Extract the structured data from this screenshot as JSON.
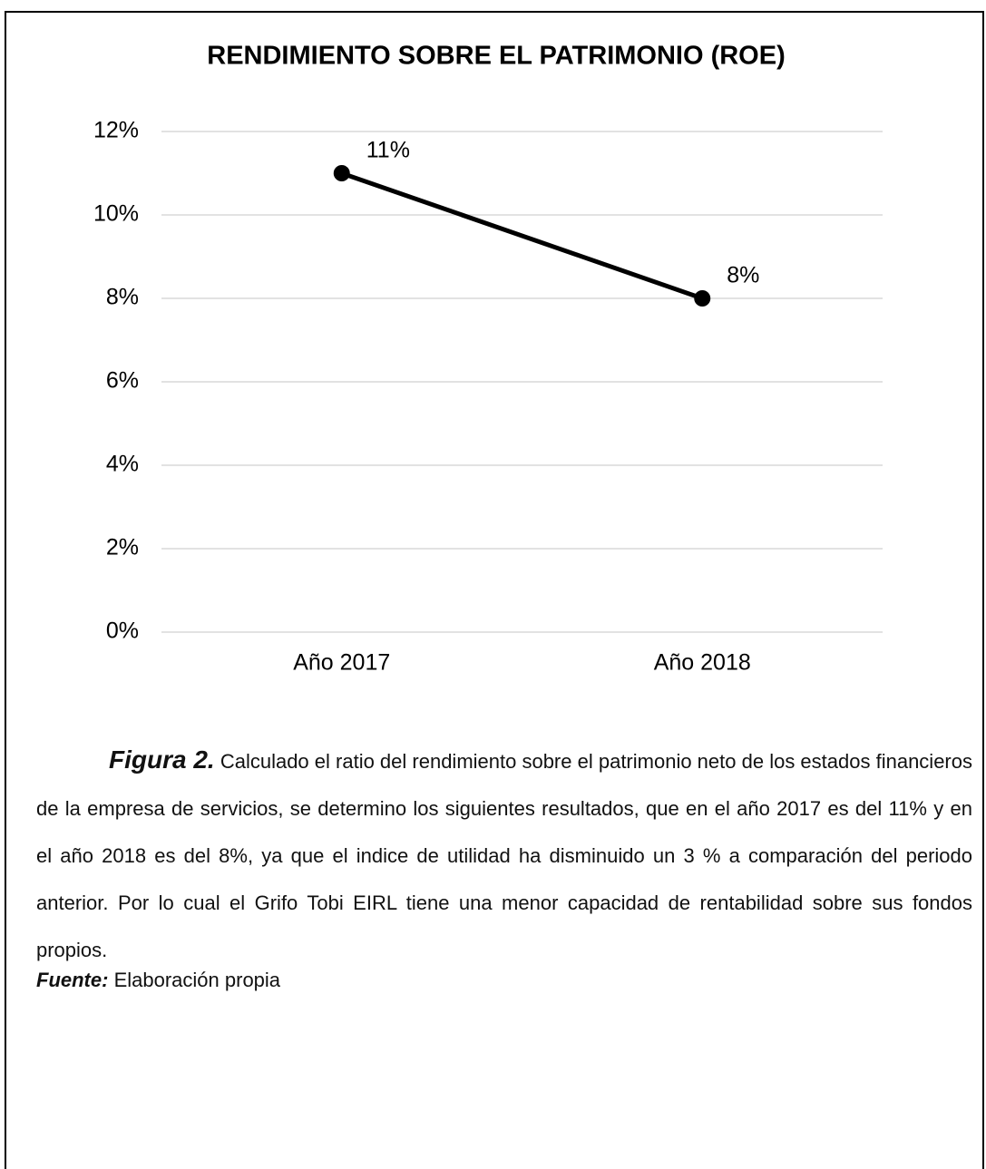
{
  "chart_data": {
    "type": "line",
    "title": "RENDIMIENTO SOBRE EL PATRIMONIO (ROE)",
    "categories": [
      "Año 2017",
      "Año 2018"
    ],
    "series": [
      {
        "name": "ROE",
        "color": "#000000",
        "values": [
          11,
          8
        ],
        "value_labels": [
          "11%",
          "8%"
        ]
      }
    ],
    "ylim": [
      0,
      12
    ],
    "yticks": [
      {
        "value": 0,
        "label": "0%"
      },
      {
        "value": 2,
        "label": "2%"
      },
      {
        "value": 4,
        "label": "4%"
      },
      {
        "value": 6,
        "label": "6%"
      },
      {
        "value": 8,
        "label": "8%"
      },
      {
        "value": 10,
        "label": "10%"
      },
      {
        "value": 12,
        "label": "12%"
      }
    ],
    "grid": true
  },
  "figure_label": "Figura 2.",
  "caption": "Calculado el ratio del rendimiento sobre el patrimonio neto de los estados financieros de la empresa de servicios, se determino los siguientes resultados, que en el año 2017 es del 11% y en el año 2018 es del 8%, ya que el indice de utilidad ha disminuido un 3 % a comparación del periodo anterior. Por lo cual el Grifo Tobi EIRL tiene una menor capacidad de rentabilidad sobre sus fondos propios.",
  "source_label": "Fuente:",
  "source": "Elaboración propia"
}
